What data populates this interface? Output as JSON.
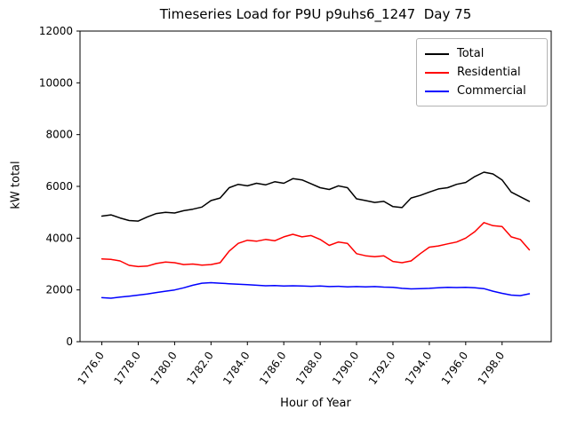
{
  "chart_data": {
    "type": "line",
    "title": "Timeseries Load for P9U p9uhs6_1247  Day 75",
    "xlabel": "Hour of Year",
    "ylabel": "kW total",
    "xlim": [
      1774.8,
      1800.7
    ],
    "ylim": [
      0,
      12000
    ],
    "grid": false,
    "legend_position": "upper right",
    "xticks": [
      1776,
      1778,
      1780,
      1782,
      1784,
      1786,
      1788,
      1790,
      1792,
      1794,
      1796,
      1798
    ],
    "xtick_labels": [
      "1776.0",
      "1778.0",
      "1780.0",
      "1782.0",
      "1784.0",
      "1786.0",
      "1788.0",
      "1790.0",
      "1792.0",
      "1794.0",
      "1796.0",
      "1798.0"
    ],
    "yticks": [
      0,
      2000,
      4000,
      6000,
      8000,
      10000,
      12000
    ],
    "ytick_labels": [
      "0",
      "2000",
      "4000",
      "6000",
      "8000",
      "10000",
      "12000"
    ],
    "x": [
      1776.0,
      1776.5,
      1777.0,
      1777.5,
      1778.0,
      1778.5,
      1779.0,
      1779.5,
      1780.0,
      1780.5,
      1781.0,
      1781.5,
      1782.0,
      1782.5,
      1783.0,
      1783.5,
      1784.0,
      1784.5,
      1785.0,
      1785.5,
      1786.0,
      1786.5,
      1787.0,
      1787.5,
      1788.0,
      1788.5,
      1789.0,
      1789.5,
      1790.0,
      1790.5,
      1791.0,
      1791.5,
      1792.0,
      1792.5,
      1793.0,
      1793.5,
      1794.0,
      1794.5,
      1795.0,
      1795.5,
      1796.0,
      1796.5,
      1797.0,
      1797.5,
      1798.0,
      1798.5,
      1799.0,
      1799.5
    ],
    "series": [
      {
        "name": "Total",
        "color": "#000000",
        "values": [
          4850,
          4900,
          4780,
          4680,
          4660,
          4820,
          4950,
          5000,
          4970,
          5060,
          5120,
          5200,
          5450,
          5550,
          5950,
          6080,
          6020,
          6120,
          6060,
          6180,
          6120,
          6300,
          6250,
          6100,
          5950,
          5880,
          6020,
          5950,
          5520,
          5450,
          5380,
          5420,
          5220,
          5180,
          5550,
          5650,
          5780,
          5900,
          5950,
          6080,
          6150,
          6380,
          6550,
          6480,
          6250,
          5780,
          5600,
          5420
        ]
      },
      {
        "name": "Residential",
        "color": "#ff0000",
        "values": [
          3200,
          3180,
          3120,
          2950,
          2900,
          2920,
          3020,
          3080,
          3050,
          2980,
          3000,
          2960,
          2980,
          3050,
          3500,
          3800,
          3920,
          3880,
          3950,
          3900,
          4050,
          4150,
          4050,
          4100,
          3950,
          3720,
          3850,
          3800,
          3400,
          3320,
          3280,
          3320,
          3100,
          3050,
          3120,
          3400,
          3650,
          3700,
          3780,
          3850,
          4000,
          4250,
          4600,
          4480,
          4450,
          4050,
          3950,
          3550
        ]
      },
      {
        "name": "Commercial",
        "color": "#0000ff",
        "values": [
          1700,
          1680,
          1720,
          1760,
          1800,
          1840,
          1900,
          1950,
          2000,
          2080,
          2180,
          2260,
          2280,
          2260,
          2240,
          2220,
          2200,
          2180,
          2160,
          2170,
          2150,
          2160,
          2150,
          2140,
          2150,
          2130,
          2140,
          2120,
          2130,
          2120,
          2130,
          2110,
          2100,
          2060,
          2040,
          2050,
          2060,
          2080,
          2100,
          2090,
          2100,
          2080,
          2050,
          1950,
          1870,
          1800,
          1780,
          1850
        ]
      }
    ]
  }
}
